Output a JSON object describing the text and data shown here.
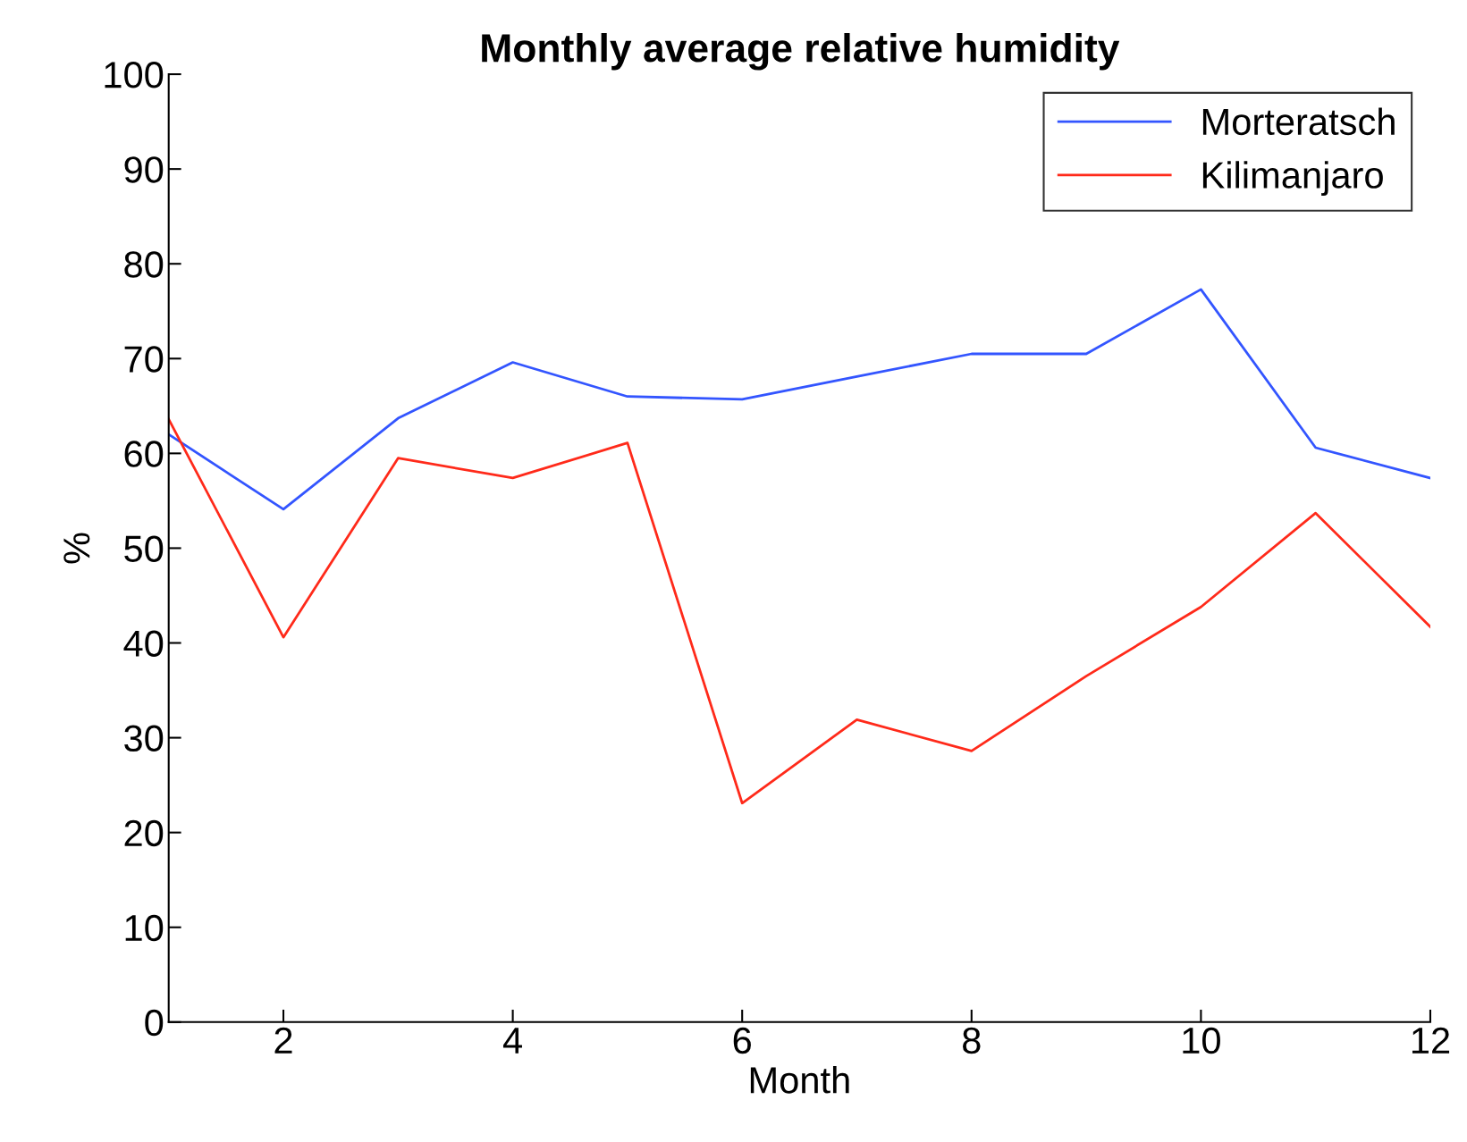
{
  "chart_data": {
    "type": "line",
    "title": "Monthly average relative humidity",
    "xlabel": "Month",
    "ylabel": "%",
    "x": [
      1,
      2,
      3,
      4,
      5,
      6,
      7,
      8,
      9,
      10,
      11,
      12
    ],
    "series": [
      {
        "name": "Morteratsch",
        "color": "#3355ff",
        "values": [
          62.0,
          54.1,
          63.7,
          69.6,
          66.0,
          65.7,
          68.1,
          70.5,
          70.5,
          77.3,
          60.6,
          57.4
        ]
      },
      {
        "name": "Kilimanjaro",
        "color": "#ff2a1a",
        "values": [
          63.6,
          40.6,
          59.5,
          57.4,
          61.1,
          23.1,
          31.9,
          28.6,
          36.5,
          43.8,
          53.7,
          41.7
        ]
      }
    ],
    "xlim": [
      1,
      12
    ],
    "xticks": [
      2,
      4,
      6,
      8,
      10,
      12
    ],
    "ylim": [
      0,
      100
    ],
    "yticks": [
      0,
      10,
      20,
      30,
      40,
      50,
      60,
      70,
      80,
      90,
      100
    ],
    "grid": false,
    "legend": "top right",
    "marker": "none",
    "line_style": "solid"
  }
}
